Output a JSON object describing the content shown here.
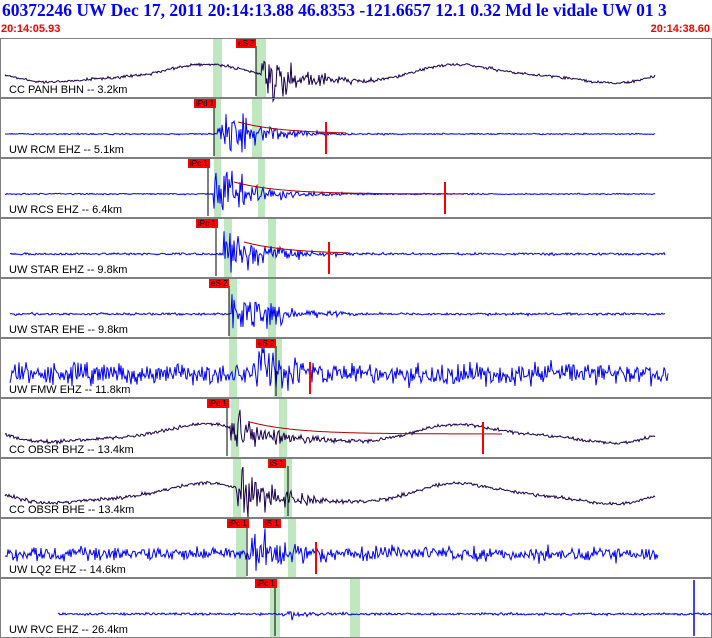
{
  "header": {
    "title": "60372246 UW Dec 17, 2011 20:14:13.88   46.8353 -121.6657 12.1 0.32 Md le vidale UW 01   3",
    "start_time": "20:14:05.93",
    "end_time": "20:14:38.60"
  },
  "colors": {
    "trace_velocity": "#0000ff",
    "trace_broadband": "#1a0050",
    "pick_marker": "#ff0000",
    "window_band": "#c0e8c0",
    "title": "#0000ff",
    "time_label": "#ff0000"
  },
  "panels": [
    {
      "label": "CC PANH BHN -- 3.2km",
      "type": "broadband",
      "picks": [
        {
          "label": "eS 2"
        }
      ]
    },
    {
      "label": "UW RCM EHZ -- 5.1km",
      "type": "velocity",
      "picks": [
        {
          "label": "iPd 1"
        }
      ]
    },
    {
      "label": "UW RCS EHZ -- 6.4km",
      "type": "velocity",
      "picks": [
        {
          "label": "iPc 1"
        }
      ]
    },
    {
      "label": "UW STAR EHZ -- 9.8km",
      "type": "velocity",
      "picks": [
        {
          "label": "iPc 1"
        }
      ]
    },
    {
      "label": "UW STAR EHE -- 9.8km",
      "type": "velocity",
      "picks": [
        {
          "label": "eS 2"
        }
      ]
    },
    {
      "label": "UW FMW EHZ -- 11.8km",
      "type": "velocity",
      "picks": [
        {
          "label": "eS 2"
        }
      ]
    },
    {
      "label": "CC OBSR BHZ -- 13.4km",
      "type": "broadband",
      "picks": [
        {
          "label": "iPc 1"
        }
      ]
    },
    {
      "label": "CC OBSR BHE -- 13.4km",
      "type": "broadband",
      "picks": [
        {
          "label": "iS 1"
        }
      ]
    },
    {
      "label": "UW LQ2 EHZ -- 14.6km",
      "type": "velocity",
      "picks": [
        {
          "label": "iPc 1"
        },
        {
          "label": "iS 1"
        }
      ]
    },
    {
      "label": "UW RVC EHZ -- 26.4km",
      "type": "velocity",
      "picks": [
        {
          "label": "iPc 1"
        }
      ]
    }
  ]
}
